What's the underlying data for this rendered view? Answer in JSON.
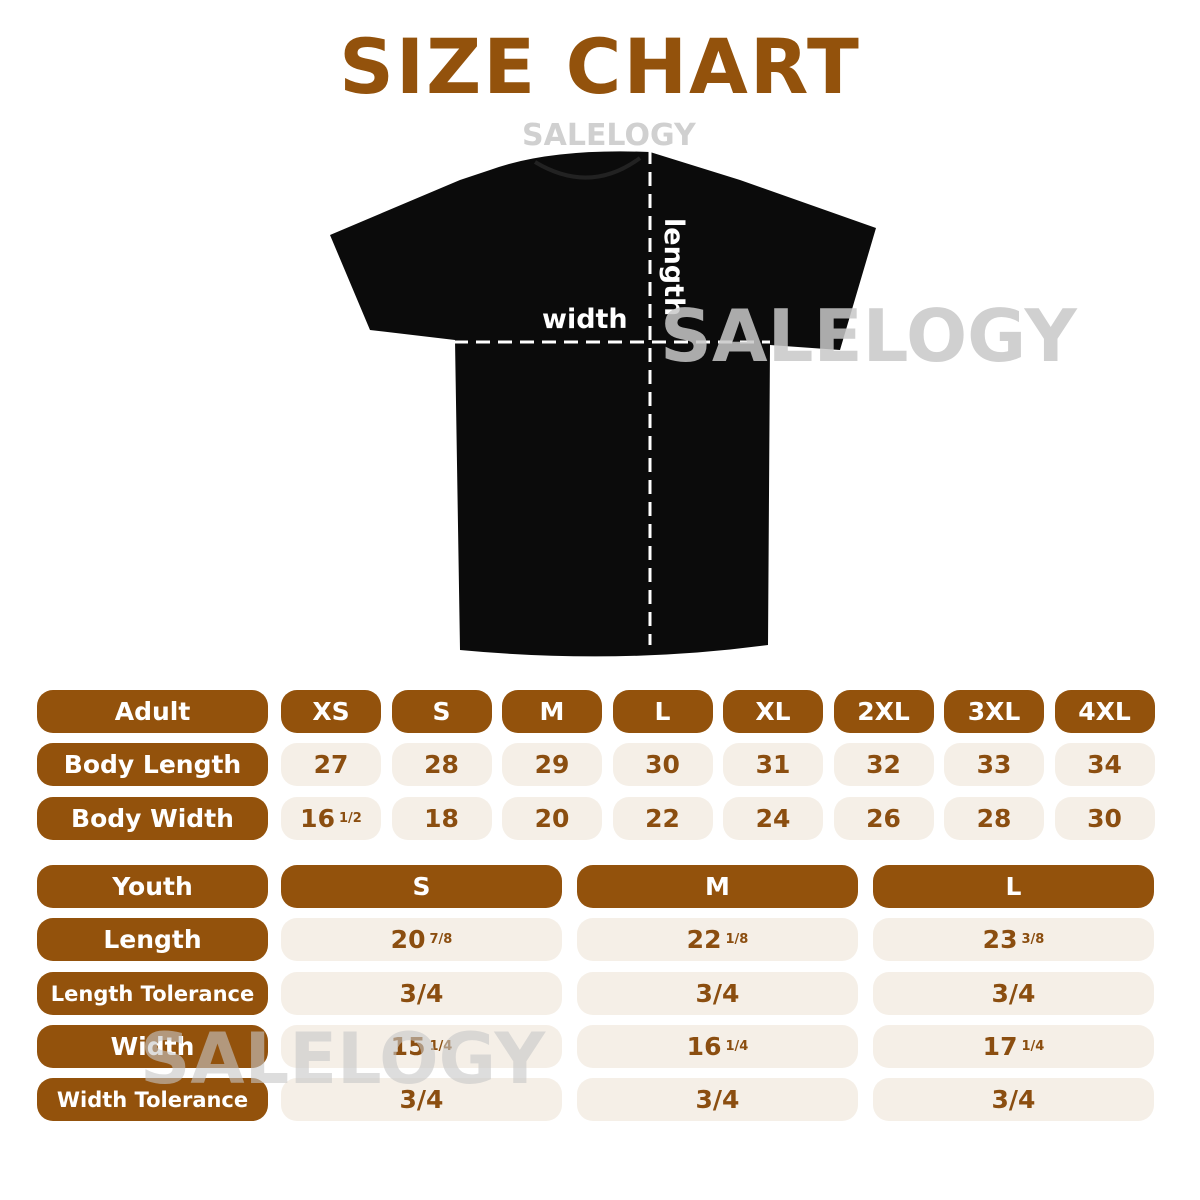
{
  "title": "SIZE CHART",
  "watermark": "SALELOGY",
  "shirt_labels": {
    "width": "width",
    "length": "length"
  },
  "colors": {
    "brand": "#93520c",
    "cell_bg": "#f5efe7",
    "value_text": "#8b4e10"
  },
  "adult": {
    "header": "Adult",
    "sizes": [
      "XS",
      "S",
      "M",
      "L",
      "XL",
      "2XL",
      "3XL",
      "4XL"
    ],
    "rows": [
      {
        "label": "Body Length",
        "values": [
          {
            "w": "27"
          },
          {
            "w": "28"
          },
          {
            "w": "29"
          },
          {
            "w": "30"
          },
          {
            "w": "31"
          },
          {
            "w": "32"
          },
          {
            "w": "33"
          },
          {
            "w": "34"
          }
        ]
      },
      {
        "label": "Body Width",
        "values": [
          {
            "w": "16",
            "f": "1/2"
          },
          {
            "w": "18"
          },
          {
            "w": "20"
          },
          {
            "w": "22"
          },
          {
            "w": "24"
          },
          {
            "w": "26"
          },
          {
            "w": "28"
          },
          {
            "w": "30"
          }
        ]
      }
    ]
  },
  "youth": {
    "header": "Youth",
    "sizes": [
      "S",
      "M",
      "L"
    ],
    "rows": [
      {
        "label": "Length",
        "values": [
          {
            "w": "20",
            "f": "7/8"
          },
          {
            "w": "22",
            "f": "1/8"
          },
          {
            "w": "23",
            "f": "3/8"
          }
        ]
      },
      {
        "label": "Length Tolerance",
        "values": [
          {
            "w": "3/4"
          },
          {
            "w": "3/4"
          },
          {
            "w": "3/4"
          }
        ]
      },
      {
        "label": "Width",
        "values": [
          {
            "w": "15",
            "f": "1/4"
          },
          {
            "w": "16",
            "f": "1/4"
          },
          {
            "w": "17",
            "f": "1/4"
          }
        ]
      },
      {
        "label": "Width Tolerance",
        "values": [
          {
            "w": "3/4"
          },
          {
            "w": "3/4"
          },
          {
            "w": "3/4"
          }
        ]
      }
    ]
  }
}
